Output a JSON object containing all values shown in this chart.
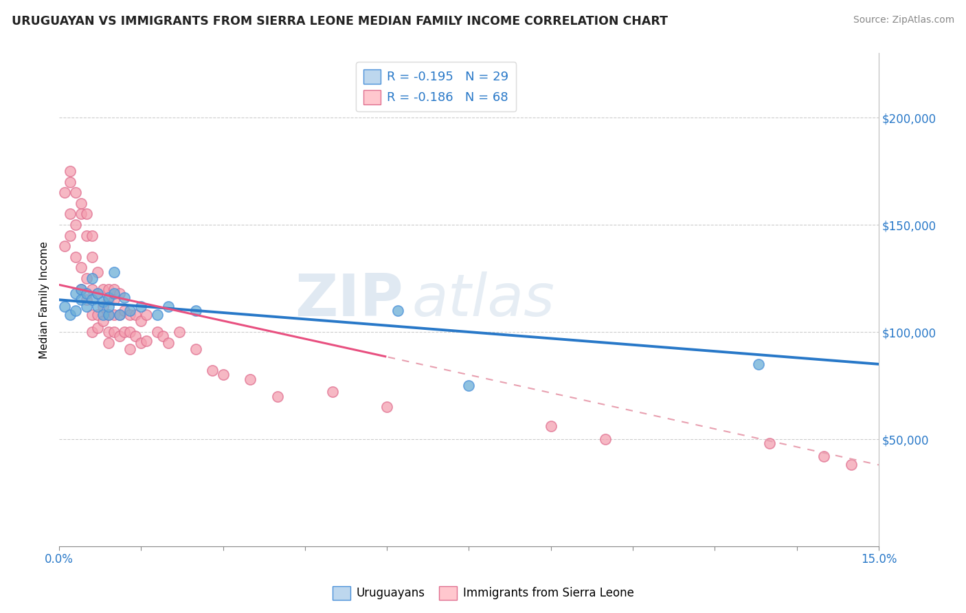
{
  "title": "URUGUAYAN VS IMMIGRANTS FROM SIERRA LEONE MEDIAN FAMILY INCOME CORRELATION CHART",
  "source_text": "Source: ZipAtlas.com",
  "ylabel": "Median Family Income",
  "xlim": [
    0.0,
    0.15
  ],
  "ylim": [
    0,
    230000
  ],
  "xticks": [
    0.0,
    0.015,
    0.03,
    0.045,
    0.06,
    0.075,
    0.09,
    0.105,
    0.12,
    0.135,
    0.15
  ],
  "xticklabels": [
    "0.0%",
    "",
    "",
    "",
    "",
    "",
    "",
    "",
    "",
    "",
    "15.0%"
  ],
  "ytick_positions": [
    50000,
    100000,
    150000,
    200000
  ],
  "ytick_labels": [
    "$50,000",
    "$100,000",
    "$150,000",
    "$200,000"
  ],
  "watermark_zip": "ZIP",
  "watermark_atlas": "atlas",
  "legend_entry1": "R = -0.195   N = 29",
  "legend_entry2": "R = -0.186   N = 68",
  "legend_label1": "Uruguayans",
  "legend_label2": "Immigrants from Sierra Leone",
  "blue_marker": "#6baed6",
  "pink_marker": "#f4a0b0",
  "blue_edge": "#4a90d9",
  "pink_edge": "#e07090",
  "blue_fill_legend": "#bdd7ee",
  "pink_fill_legend": "#ffc7ce",
  "trend_blue": "#2878c8",
  "trend_pink": "#e85080",
  "trend_pink_dash": "#e8a0b0",
  "uruguayan_x": [
    0.001,
    0.002,
    0.003,
    0.003,
    0.004,
    0.004,
    0.005,
    0.005,
    0.006,
    0.006,
    0.007,
    0.007,
    0.008,
    0.008,
    0.009,
    0.009,
    0.009,
    0.01,
    0.01,
    0.011,
    0.012,
    0.013,
    0.015,
    0.018,
    0.02,
    0.025,
    0.062,
    0.075,
    0.128
  ],
  "uruguayan_y": [
    112000,
    108000,
    118000,
    110000,
    120000,
    115000,
    118000,
    112000,
    115000,
    125000,
    112000,
    118000,
    108000,
    114000,
    116000,
    108000,
    112000,
    118000,
    128000,
    108000,
    116000,
    110000,
    112000,
    108000,
    112000,
    110000,
    110000,
    75000,
    85000
  ],
  "sierral_x": [
    0.001,
    0.001,
    0.002,
    0.002,
    0.002,
    0.002,
    0.003,
    0.003,
    0.003,
    0.004,
    0.004,
    0.004,
    0.004,
    0.005,
    0.005,
    0.005,
    0.005,
    0.006,
    0.006,
    0.006,
    0.006,
    0.006,
    0.007,
    0.007,
    0.007,
    0.007,
    0.008,
    0.008,
    0.008,
    0.009,
    0.009,
    0.009,
    0.009,
    0.009,
    0.01,
    0.01,
    0.01,
    0.01,
    0.011,
    0.011,
    0.011,
    0.012,
    0.012,
    0.013,
    0.013,
    0.013,
    0.014,
    0.014,
    0.015,
    0.015,
    0.016,
    0.016,
    0.018,
    0.019,
    0.02,
    0.022,
    0.025,
    0.028,
    0.03,
    0.035,
    0.04,
    0.05,
    0.06,
    0.09,
    0.1,
    0.13,
    0.14,
    0.145
  ],
  "sierral_y": [
    140000,
    165000,
    155000,
    145000,
    175000,
    170000,
    165000,
    150000,
    135000,
    160000,
    155000,
    130000,
    120000,
    145000,
    155000,
    125000,
    115000,
    145000,
    135000,
    120000,
    108000,
    100000,
    128000,
    118000,
    108000,
    102000,
    120000,
    112000,
    105000,
    120000,
    115000,
    108000,
    100000,
    95000,
    120000,
    115000,
    108000,
    100000,
    118000,
    108000,
    98000,
    110000,
    100000,
    108000,
    100000,
    92000,
    108000,
    98000,
    105000,
    95000,
    108000,
    96000,
    100000,
    98000,
    95000,
    100000,
    92000,
    82000,
    80000,
    78000,
    70000,
    72000,
    65000,
    56000,
    50000,
    48000,
    42000,
    38000
  ]
}
